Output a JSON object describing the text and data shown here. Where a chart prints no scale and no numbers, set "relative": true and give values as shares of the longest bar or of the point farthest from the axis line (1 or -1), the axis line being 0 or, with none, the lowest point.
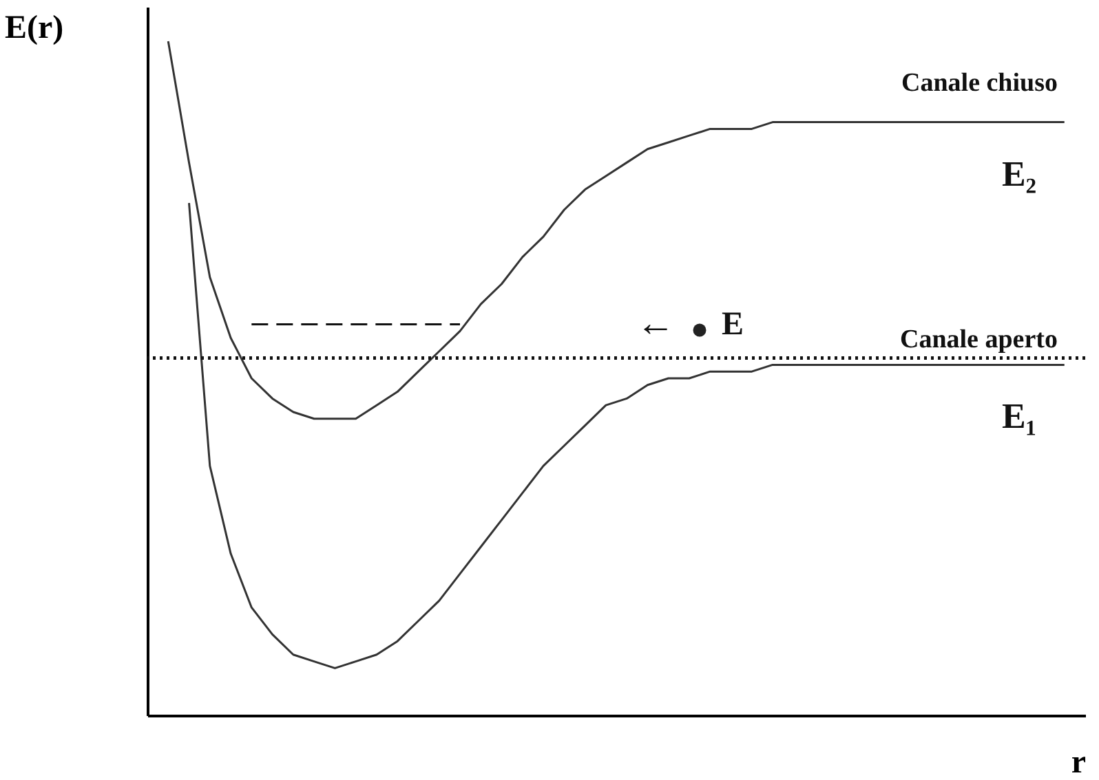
{
  "chart_data": {
    "type": "line",
    "relative": true,
    "xlabel": "r",
    "ylabel": "E(r)",
    "grid": false,
    "marker": "none",
    "tick_labels": false,
    "categories": [
      null,
      null,
      null,
      null,
      null,
      null,
      null,
      null,
      null,
      null,
      null,
      null,
      null,
      null,
      null,
      null,
      null,
      null,
      null,
      null,
      null,
      null,
      null,
      null,
      null,
      null,
      null,
      null,
      null,
      null,
      null,
      null,
      null,
      null,
      null,
      null,
      null,
      null,
      null,
      null,
      null,
      null,
      null,
      null
    ],
    "series": [
      {
        "name": "E₂",
        "color": "#333333",
        "line_style": "solid",
        "values": [
          1.0,
          0.82,
          0.65,
          0.56,
          0.5,
          0.47,
          0.45,
          0.44,
          0.44,
          0.44,
          0.46,
          0.48,
          0.51,
          0.54,
          0.57,
          0.61,
          0.64,
          0.68,
          0.71,
          0.75,
          0.78,
          0.8,
          0.82,
          0.84,
          0.85,
          0.86,
          0.87,
          0.87,
          0.87,
          0.88,
          0.88,
          0.88,
          0.88,
          0.88,
          0.88,
          0.88,
          0.88,
          0.88,
          0.88,
          0.88,
          0.88,
          0.88,
          0.88,
          0.88
        ]
      },
      {
        "name": "E₁",
        "color": "#333333",
        "line_style": "solid",
        "values": [
          null,
          0.76,
          0.37,
          0.24,
          0.16,
          0.12,
          0.09,
          0.08,
          0.07,
          0.08,
          0.09,
          0.11,
          0.14,
          0.17,
          0.21,
          0.25,
          0.29,
          0.33,
          0.37,
          0.4,
          0.43,
          0.46,
          0.47,
          0.49,
          0.5,
          0.5,
          0.51,
          0.51,
          0.51,
          0.52,
          0.52,
          0.52,
          0.52,
          0.52,
          0.52,
          0.52,
          0.52,
          0.52,
          0.52,
          0.52,
          0.52,
          0.52,
          0.52,
          0.52
        ]
      },
      {
        "color": "#111111",
        "line_style": "dashed",
        "values": [
          null,
          null,
          null,
          null,
          0.58,
          0.58,
          0.58,
          0.58,
          0.58,
          0.58,
          0.58,
          0.58,
          0.58,
          0.58,
          0.58,
          null,
          null,
          null,
          null,
          null,
          null,
          null,
          null,
          null,
          null,
          null,
          null,
          null,
          null,
          null,
          null,
          null,
          null,
          null,
          null,
          null,
          null,
          null,
          null,
          null,
          null,
          null,
          null,
          null
        ]
      }
    ],
    "ref_lines": [
      {
        "axis": "y",
        "value": 0.53,
        "label": "Canale aperto",
        "line_style": "dotted",
        "color": "#111111"
      }
    ],
    "annotations": [
      "Canale chiuso",
      "E",
      "←"
    ]
  }
}
